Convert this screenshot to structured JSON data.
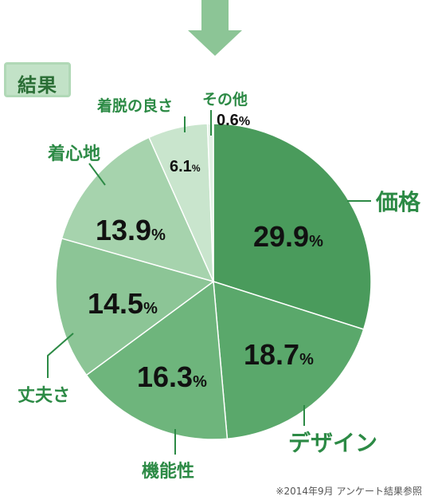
{
  "result_label": "結果",
  "footnote": "※2014年9月 アンケート結果参照",
  "chart_data": {
    "type": "pie",
    "title": "",
    "unit": "%",
    "slices": [
      {
        "label": "価格",
        "value": 29.9,
        "value_text": "29.9",
        "color": "#4a9b5c"
      },
      {
        "label": "デザイン",
        "value": 18.7,
        "value_text": "18.7",
        "color": "#5aa86b"
      },
      {
        "label": "機能性",
        "value": 16.3,
        "value_text": "16.3",
        "color": "#6eb57c"
      },
      {
        "label": "丈夫さ",
        "value": 14.5,
        "value_text": "14.5",
        "color": "#8cc596"
      },
      {
        "label": "着心地",
        "value": 13.9,
        "value_text": "13.9",
        "color": "#a6d3ad"
      },
      {
        "label": "着脱の良さ",
        "value": 6.1,
        "value_text": "6.1",
        "color": "#c9e5cd"
      },
      {
        "label": "その他",
        "value": 0.6,
        "value_text": "0.6",
        "color": "#e3f2e5"
      }
    ]
  },
  "colors": {
    "accent": "#2c8a45",
    "arrow": "#8cc596"
  }
}
